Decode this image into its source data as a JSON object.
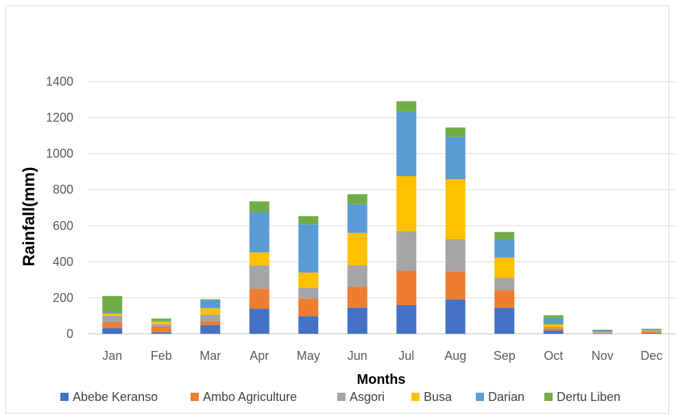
{
  "chart_data": {
    "type": "bar",
    "stacked": true,
    "title": "",
    "xlabel": "Months",
    "ylabel": "Rainfall(mm)",
    "ylim": [
      0,
      1400
    ],
    "yticks": [
      0,
      200,
      400,
      600,
      800,
      1000,
      1200,
      1400
    ],
    "grid": true,
    "legend_position": "bottom",
    "categories": [
      "Jan",
      "Feb",
      "Mar",
      "Apr",
      "May",
      "Jun",
      "Jul",
      "Aug",
      "Sep",
      "Oct",
      "Nov",
      "Dec"
    ],
    "series": [
      {
        "name": "Abebe Keranso",
        "color": "#4472C4",
        "values": [
          32,
          8,
          48,
          140,
          98,
          145,
          160,
          190,
          145,
          18,
          2,
          5
        ]
      },
      {
        "name": "Ambo Agriculture",
        "color": "#ED7D31",
        "values": [
          33,
          30,
          22,
          110,
          97,
          117,
          190,
          155,
          98,
          12,
          3,
          6
        ]
      },
      {
        "name": "Asgori",
        "color": "#A5A5A5",
        "values": [
          35,
          15,
          37,
          130,
          60,
          118,
          220,
          180,
          68,
          8,
          2,
          4
        ]
      },
      {
        "name": "Busa",
        "color": "#FFC000",
        "values": [
          12,
          15,
          35,
          72,
          85,
          180,
          305,
          333,
          112,
          15,
          3,
          3
        ]
      },
      {
        "name": "Darian",
        "color": "#5B9BD5",
        "values": [
          8,
          5,
          45,
          223,
          268,
          160,
          358,
          235,
          100,
          35,
          10,
          8
        ]
      },
      {
        "name": "Dertu Liben",
        "color": "#70AD47",
        "values": [
          90,
          12,
          5,
          60,
          45,
          55,
          58,
          52,
          42,
          15,
          3,
          2
        ]
      }
    ]
  }
}
